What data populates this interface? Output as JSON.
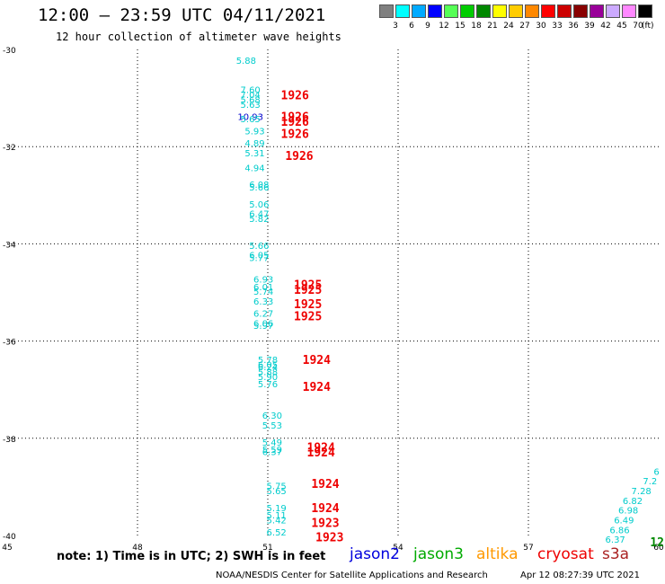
{
  "header": {
    "title": "12:00 – 23:59 UTC 04/11/2021",
    "subtitle": "12 hour collection of altimeter wave heights"
  },
  "legend": {
    "unit": "(ft)",
    "swatches": [
      {
        "label": "3",
        "color": "#808080"
      },
      {
        "label": "6",
        "color": "#00ffff"
      },
      {
        "label": "9",
        "color": "#00aaff"
      },
      {
        "label": "12",
        "color": "#0000ff"
      },
      {
        "label": "15",
        "color": "#55ff55"
      },
      {
        "label": "18",
        "color": "#00cc00"
      },
      {
        "label": "21",
        "color": "#008800"
      },
      {
        "label": "24",
        "color": "#ffff00"
      },
      {
        "label": "27",
        "color": "#ffcc00"
      },
      {
        "label": "30",
        "color": "#ff8800"
      },
      {
        "label": "33",
        "color": "#ff0000"
      },
      {
        "label": "36",
        "color": "#cc0000"
      },
      {
        "label": "39",
        "color": "#880000"
      },
      {
        "label": "42",
        "color": "#990099"
      },
      {
        "label": "45",
        "color": "#ccaaff"
      },
      {
        "label": "70",
        "color": "#ff88ff"
      },
      {
        "label": "",
        "color": "#000000"
      }
    ]
  },
  "axes": {
    "lat_ticks": [
      "-30",
      "-32",
      "-34",
      "-36",
      "-38",
      "-40"
    ],
    "lon_ticks": [
      "45",
      "48",
      "51",
      "54",
      "57",
      "60"
    ],
    "lat_range": [
      -30,
      -40
    ],
    "lon_range": [
      45,
      60
    ]
  },
  "colors": {
    "swh_cyan": "#00cccc",
    "swh_blue": "#0000cc",
    "time_red": "#ee0000",
    "time_green": "#008800",
    "grid": "#000000"
  },
  "observations": [
    {
      "lon": 50.5,
      "lat": -30.3,
      "v": "5.88",
      "c": "swh_cyan"
    },
    {
      "lon": 50.6,
      "lat": -30.9,
      "v": "7.60",
      "c": "swh_cyan"
    },
    {
      "lon": 50.6,
      "lat": -31.0,
      "v": "7.04",
      "c": "swh_cyan"
    },
    {
      "lon": 50.6,
      "lat": -31.1,
      "v": "5.68",
      "c": "swh_cyan"
    },
    {
      "lon": 50.6,
      "lat": -31.2,
      "v": "5.63",
      "c": "swh_cyan"
    },
    {
      "lon": 50.6,
      "lat": -31.45,
      "v": "10.93",
      "c": "swh_blue"
    },
    {
      "lon": 50.6,
      "lat": -31.5,
      "v": "5.65",
      "c": "swh_cyan"
    },
    {
      "lon": 50.7,
      "lat": -31.75,
      "v": "5.93",
      "c": "swh_cyan"
    },
    {
      "lon": 50.7,
      "lat": -32.0,
      "v": "4.89",
      "c": "swh_cyan"
    },
    {
      "lon": 50.7,
      "lat": -32.2,
      "v": "5.31",
      "c": "swh_cyan"
    },
    {
      "lon": 50.7,
      "lat": -32.5,
      "v": "4.94",
      "c": "swh_cyan"
    },
    {
      "lon": 50.8,
      "lat": -32.85,
      "v": "6.08",
      "c": "swh_cyan"
    },
    {
      "lon": 50.8,
      "lat": -32.9,
      "v": "5.66",
      "c": "swh_cyan"
    },
    {
      "lon": 50.8,
      "lat": -33.25,
      "v": "5.06",
      "c": "swh_cyan"
    },
    {
      "lon": 50.8,
      "lat": -33.45,
      "v": "6.47",
      "c": "swh_cyan"
    },
    {
      "lon": 50.8,
      "lat": -33.55,
      "v": "5.82",
      "c": "swh_cyan"
    },
    {
      "lon": 50.8,
      "lat": -34.1,
      "v": "5.66",
      "c": "swh_cyan"
    },
    {
      "lon": 50.8,
      "lat": -34.3,
      "v": "6.05",
      "c": "swh_cyan"
    },
    {
      "lon": 50.8,
      "lat": -34.35,
      "v": "5.77",
      "c": "swh_cyan"
    },
    {
      "lon": 50.9,
      "lat": -34.8,
      "v": "6.93",
      "c": "swh_cyan"
    },
    {
      "lon": 50.9,
      "lat": -34.95,
      "v": "6.01",
      "c": "swh_cyan"
    },
    {
      "lon": 50.9,
      "lat": -35.05,
      "v": "5.74",
      "c": "swh_cyan"
    },
    {
      "lon": 50.9,
      "lat": -35.25,
      "v": "6.33",
      "c": "swh_cyan"
    },
    {
      "lon": 50.9,
      "lat": -35.5,
      "v": "6.27",
      "c": "swh_cyan"
    },
    {
      "lon": 50.9,
      "lat": -35.7,
      "v": "6.06",
      "c": "swh_cyan"
    },
    {
      "lon": 50.9,
      "lat": -35.75,
      "v": "5.97",
      "c": "swh_cyan"
    },
    {
      "lon": 51.0,
      "lat": -36.45,
      "v": "5.78",
      "c": "swh_cyan"
    },
    {
      "lon": 51.0,
      "lat": -36.55,
      "v": "6.05",
      "c": "swh_cyan"
    },
    {
      "lon": 51.0,
      "lat": -36.6,
      "v": "6.24",
      "c": "swh_cyan"
    },
    {
      "lon": 51.0,
      "lat": -36.7,
      "v": "5.88",
      "c": "swh_cyan"
    },
    {
      "lon": 51.0,
      "lat": -36.8,
      "v": "5.90",
      "c": "swh_cyan"
    },
    {
      "lon": 51.0,
      "lat": -36.95,
      "v": "5.76",
      "c": "swh_cyan"
    },
    {
      "lon": 51.1,
      "lat": -37.6,
      "v": "6.30",
      "c": "swh_cyan"
    },
    {
      "lon": 51.1,
      "lat": -37.8,
      "v": "5.53",
      "c": "swh_cyan"
    },
    {
      "lon": 51.1,
      "lat": -38.15,
      "v": "5.49",
      "c": "swh_cyan"
    },
    {
      "lon": 51.1,
      "lat": -38.3,
      "v": "5.59",
      "c": "swh_cyan"
    },
    {
      "lon": 51.1,
      "lat": -38.35,
      "v": "6.37",
      "c": "swh_cyan"
    },
    {
      "lon": 51.2,
      "lat": -39.05,
      "v": "5.75",
      "c": "swh_cyan"
    },
    {
      "lon": 51.2,
      "lat": -39.15,
      "v": "5.65",
      "c": "swh_cyan"
    },
    {
      "lon": 51.2,
      "lat": -39.5,
      "v": "5.19",
      "c": "swh_cyan"
    },
    {
      "lon": 51.2,
      "lat": -39.65,
      "v": "5.11",
      "c": "swh_cyan"
    },
    {
      "lon": 51.2,
      "lat": -39.75,
      "v": "5.42",
      "c": "swh_cyan"
    },
    {
      "lon": 51.2,
      "lat": -40.0,
      "v": "6.52",
      "c": "swh_cyan"
    },
    {
      "lon": 59.95,
      "lat": -38.75,
      "v": "6",
      "c": "swh_cyan"
    },
    {
      "lon": 59.8,
      "lat": -38.95,
      "v": "7.2",
      "c": "swh_cyan"
    },
    {
      "lon": 59.6,
      "lat": -39.15,
      "v": "7.28",
      "c": "swh_cyan"
    },
    {
      "lon": 59.4,
      "lat": -39.35,
      "v": "6.82",
      "c": "swh_cyan"
    },
    {
      "lon": 59.3,
      "lat": -39.55,
      "v": "6.98",
      "c": "swh_cyan"
    },
    {
      "lon": 59.2,
      "lat": -39.75,
      "v": "6.49",
      "c": "swh_cyan"
    },
    {
      "lon": 59.1,
      "lat": -39.95,
      "v": "6.86",
      "c": "swh_cyan"
    },
    {
      "lon": 59.0,
      "lat": -40.15,
      "v": "6.37",
      "c": "swh_cyan"
    }
  ],
  "times": [
    {
      "lon": 51.3,
      "lat": -30.95,
      "v": "1926",
      "c": "time_red"
    },
    {
      "lon": 51.3,
      "lat": -31.4,
      "v": "1926",
      "c": "time_red"
    },
    {
      "lon": 51.3,
      "lat": -31.5,
      "v": "1926",
      "c": "time_red"
    },
    {
      "lon": 51.3,
      "lat": -31.75,
      "v": "1926",
      "c": "time_red"
    },
    {
      "lon": 51.4,
      "lat": -32.2,
      "v": "1926",
      "c": "time_red"
    },
    {
      "lon": 51.6,
      "lat": -34.85,
      "v": "1925",
      "c": "time_red"
    },
    {
      "lon": 51.6,
      "lat": -34.95,
      "v": "1925",
      "c": "time_red"
    },
    {
      "lon": 51.6,
      "lat": -35.25,
      "v": "1925",
      "c": "time_red"
    },
    {
      "lon": 51.6,
      "lat": -35.5,
      "v": "1925",
      "c": "time_red"
    },
    {
      "lon": 51.8,
      "lat": -36.4,
      "v": "1924",
      "c": "time_red"
    },
    {
      "lon": 51.8,
      "lat": -36.95,
      "v": "1924",
      "c": "time_red"
    },
    {
      "lon": 51.9,
      "lat": -38.2,
      "v": "1924",
      "c": "time_red"
    },
    {
      "lon": 51.9,
      "lat": -38.3,
      "v": "1924",
      "c": "time_red"
    },
    {
      "lon": 52.0,
      "lat": -38.95,
      "v": "1924",
      "c": "time_red"
    },
    {
      "lon": 52.0,
      "lat": -39.45,
      "v": "1924",
      "c": "time_red"
    },
    {
      "lon": 52.0,
      "lat": -39.75,
      "v": "1923",
      "c": "time_red"
    },
    {
      "lon": 52.1,
      "lat": -40.05,
      "v": "1923",
      "c": "time_red"
    },
    {
      "lon": 59.8,
      "lat": -40.15,
      "v": "12",
      "c": "time_green"
    }
  ],
  "note": {
    "text": "note:  1) Time is in UTC;  2) SWH is in feet"
  },
  "satellites": [
    {
      "name": "jason2",
      "color": "#0000dd"
    },
    {
      "name": "jason3",
      "color": "#00aa00"
    },
    {
      "name": "altika",
      "color": "#ff9900"
    },
    {
      "name": "cryosat",
      "color": "#ee0000"
    },
    {
      "name": "s3a",
      "color": "#aa2222"
    }
  ],
  "footer": {
    "credit": "NOAA/NESDIS Center for Satellite Applications and Research",
    "stamp": "Apr 12 08:27:39 UTC 2021"
  }
}
